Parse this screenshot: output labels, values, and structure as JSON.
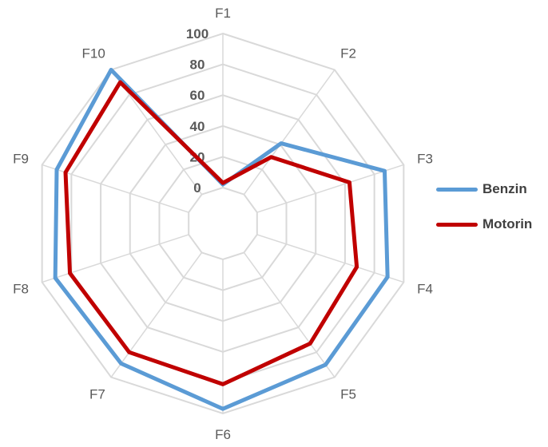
{
  "chart_data": {
    "type": "radar",
    "categories": [
      "F1",
      "F2",
      "F3",
      "F4",
      "F5",
      "F6",
      "F7",
      "F8",
      "F9",
      "F10"
    ],
    "rlim": [
      0,
      100
    ],
    "r_ticks": [
      "0",
      "20",
      "40",
      "60",
      "80",
      "100"
    ],
    "grid": true,
    "legend_position": "right",
    "series": [
      {
        "name": "Benzin",
        "color": "#5B9BD5",
        "values": [
          2,
          41,
          87,
          89,
          90,
          97,
          89,
          91,
          90,
          100
        ]
      },
      {
        "name": "Motorin",
        "color": "#C00000",
        "values": [
          3,
          30,
          63,
          68,
          73,
          81,
          80,
          81,
          84,
          90
        ]
      }
    ]
  }
}
